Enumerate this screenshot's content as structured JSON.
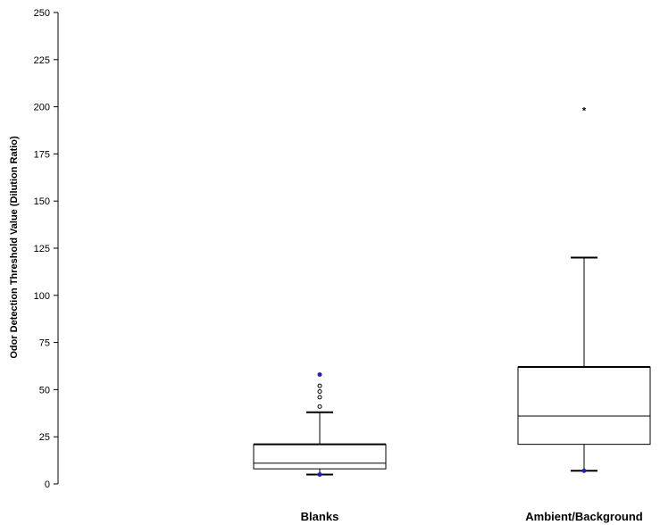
{
  "chart_data": {
    "type": "box",
    "title": "",
    "xlabel": "",
    "ylabel": "Odor Detection Threshold Value (Dilution Ratio)",
    "ylim": [
      0,
      250
    ],
    "yticks": [
      0,
      25,
      50,
      75,
      100,
      125,
      150,
      175,
      200,
      225,
      250
    ],
    "grid": false,
    "categories": [
      "Blanks",
      "Ambient/Background"
    ],
    "boxes": [
      {
        "category": "Blanks",
        "whisker_low": 5,
        "q1": 8,
        "median": 11,
        "q3": 21,
        "whisker_high": 38,
        "outliers": [
          41,
          46,
          49,
          52
        ],
        "extremes": [],
        "min_point": 5,
        "max_point": 58
      },
      {
        "category": "Ambient/Background",
        "whisker_low": 7,
        "q1": 21,
        "median": 36,
        "q3": 62,
        "whisker_high": 120,
        "outliers": [],
        "extremes": [
          199
        ],
        "min_point": 7,
        "max_point": null
      }
    ],
    "colors": {
      "box": "#000000",
      "min_max_point": "#1f1fbf",
      "outlier_fill": "#ffffff"
    }
  }
}
